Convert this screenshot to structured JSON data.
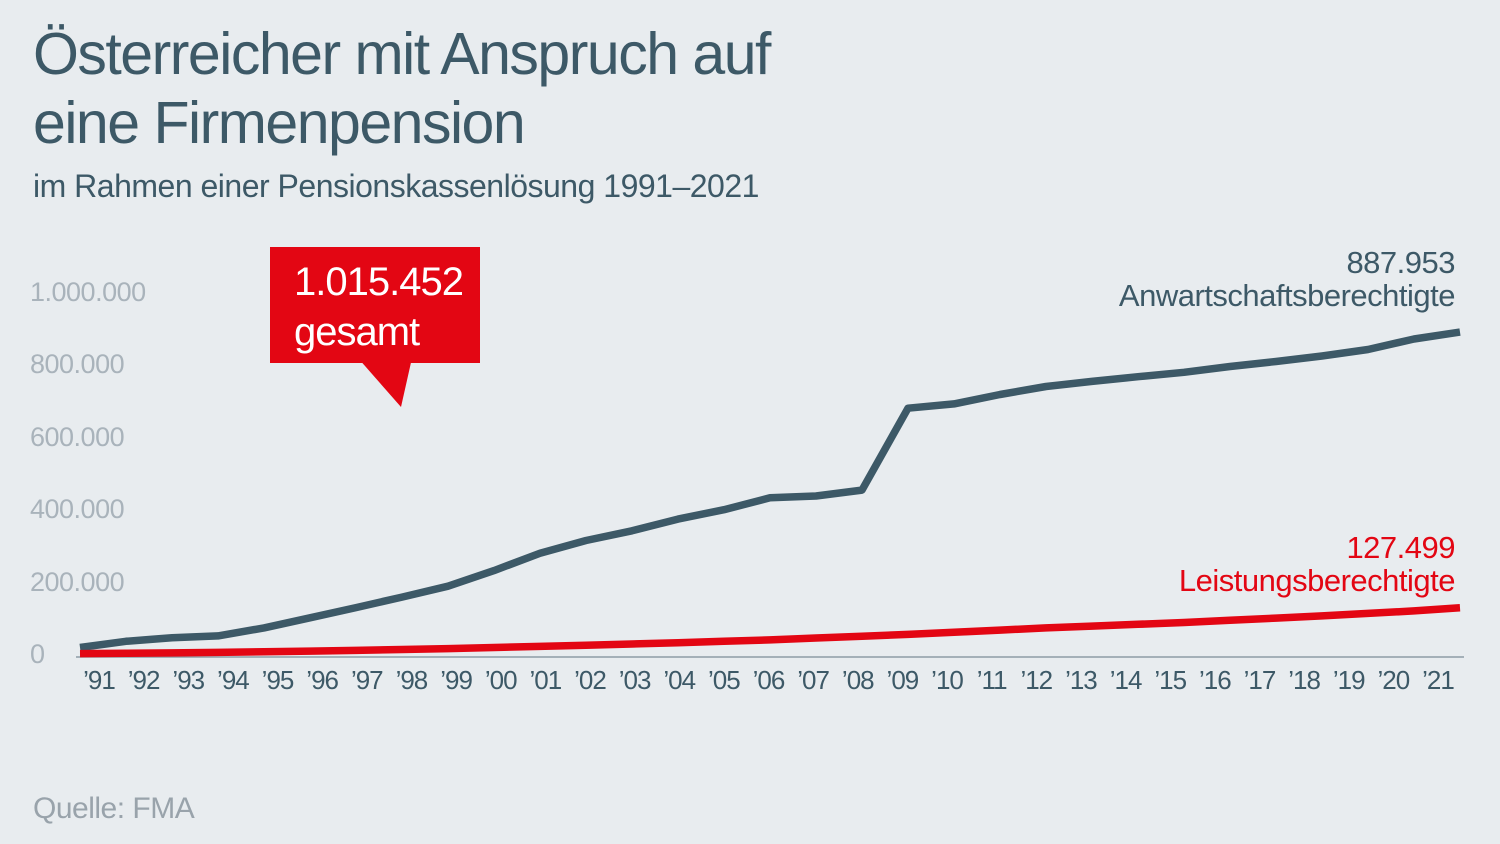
{
  "header": {
    "title_line1": "Österreicher mit Anspruch auf",
    "title_line2": "eine Firmenpension",
    "subtitle": "im Rahmen einer Pensionskassenlösung 1991–2021"
  },
  "callout": {
    "value": "1.015.452",
    "label": "gesamt"
  },
  "series_labels": {
    "anwartschaft": {
      "value": "887.953",
      "label": "Anwartschaftsberechtigte"
    },
    "leistung": {
      "value": "127.499",
      "label": "Leistungsberechtigte"
    }
  },
  "footer": {
    "source": "Quelle: FMA"
  },
  "colors": {
    "background": "#e8ecef",
    "slate": "#3d5967",
    "red": "#e30613",
    "y_label_gray": "#a9b3bb",
    "axis_gray": "#8e9ca5",
    "source_gray": "#99a3ab",
    "callout_text": "#ffffff"
  },
  "chart_data": {
    "type": "line",
    "title": "Österreicher mit Anspruch auf eine Firmenpension",
    "subtitle": "im Rahmen einer Pensionskassenlösung 1991–2021",
    "source": "Quelle: FMA",
    "grid": false,
    "legend_position": "end-of-line labels",
    "ylim": [
      0,
      1000000
    ],
    "y_ticks": [
      0,
      200000,
      400000,
      600000,
      800000,
      1000000
    ],
    "y_tick_labels": [
      "0",
      "200.000",
      "400.000",
      "600.000",
      "800.000",
      "1.000.000"
    ],
    "x": [
      1991,
      1992,
      1993,
      1994,
      1995,
      1996,
      1997,
      1998,
      1999,
      2000,
      2001,
      2002,
      2003,
      2004,
      2005,
      2006,
      2007,
      2008,
      2009,
      2010,
      2011,
      2012,
      2013,
      2014,
      2015,
      2016,
      2017,
      2018,
      2019,
      2020,
      2021
    ],
    "x_tick_labels": [
      "’91",
      "’92",
      "’93",
      "’94",
      "’95",
      "’96",
      "’97",
      "’98",
      "’99",
      "’00",
      "’01",
      "’02",
      "’03",
      "’04",
      "’05",
      "’06",
      "’07",
      "’08",
      "’09",
      "’10",
      "’11",
      "’12",
      "’13",
      "’14",
      "’15",
      "’16",
      "’17",
      "’18",
      "’19",
      "’20",
      "’21"
    ],
    "total_gesamt": 1015452,
    "series": [
      {
        "name": "Anwartschaftsberechtigte",
        "color": "#3d5967",
        "end_value": 887953,
        "values": [
          18000,
          35000,
          45000,
          50000,
          72000,
          100000,
          128000,
          157000,
          187000,
          230000,
          278000,
          313000,
          340000,
          372000,
          398000,
          431000,
          436000,
          452000,
          678000,
          690000,
          716000,
          738000,
          752000,
          765000,
          777000,
          793000,
          807000,
          822000,
          840000,
          869000,
          887953
        ]
      },
      {
        "name": "Leistungsberechtigte",
        "color": "#e30613",
        "end_value": 127499,
        "values": [
          1000,
          2000,
          3000,
          4500,
          6000,
          8000,
          10000,
          12500,
          15000,
          18000,
          21000,
          24000,
          27500,
          31000,
          35000,
          39000,
          44000,
          49000,
          54000,
          60000,
          66000,
          72000,
          77000,
          82000,
          87000,
          93000,
          99000,
          105000,
          112000,
          119000,
          127499
        ]
      }
    ]
  }
}
